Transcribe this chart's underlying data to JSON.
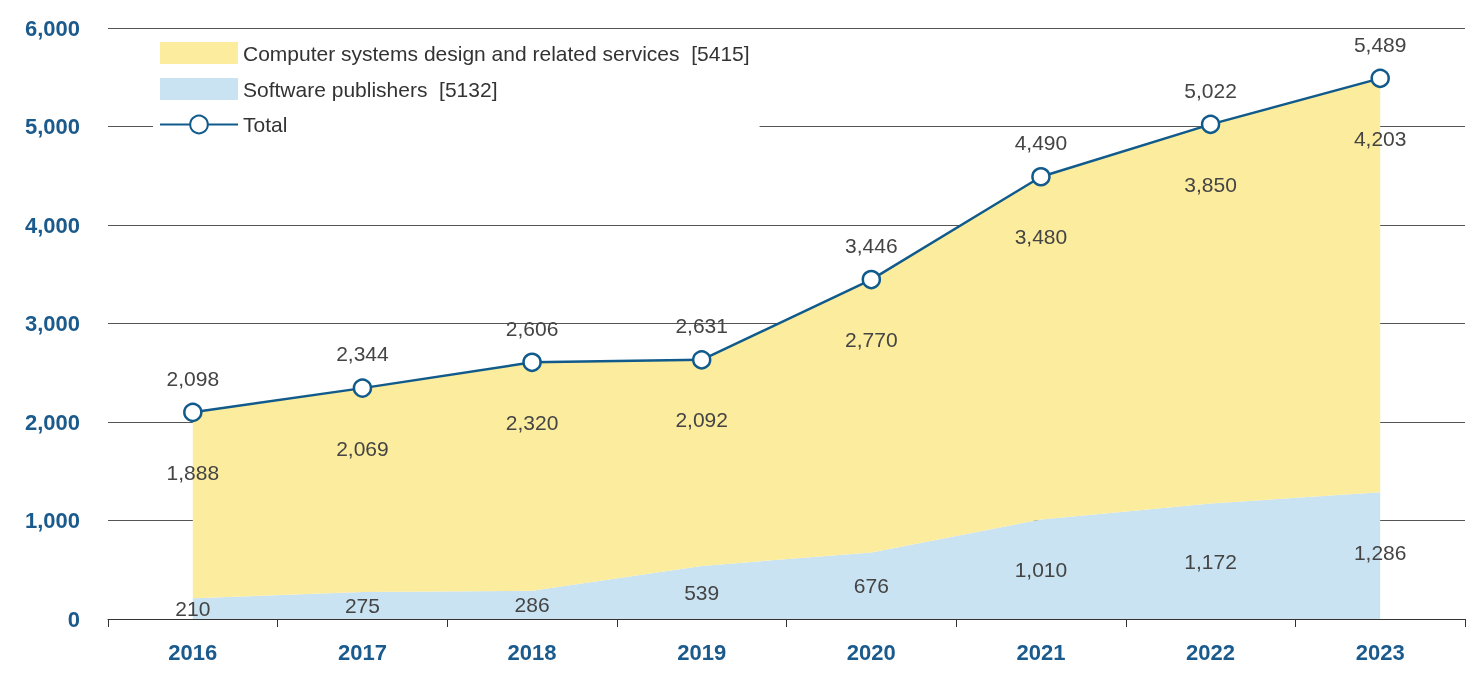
{
  "chart_data": {
    "type": "area",
    "stacked": true,
    "categories": [
      "2016",
      "2017",
      "2018",
      "2019",
      "2020",
      "2021",
      "2022",
      "2023"
    ],
    "series": [
      {
        "name": "Software publishers  [5132]",
        "color": "#c9e3f2",
        "values": [
          210,
          275,
          286,
          539,
          676,
          1010,
          1172,
          1286
        ],
        "value_labels": [
          "210",
          "275",
          "286",
          "539",
          "676",
          "1,010",
          "1,172",
          "1,286"
        ]
      },
      {
        "name": "Computer systems design and related services  [5415]",
        "color": "#fcec9e",
        "values": [
          1888,
          2069,
          2320,
          2092,
          2770,
          3480,
          3850,
          4203
        ],
        "value_labels": [
          "1,888",
          "2,069",
          "2,320",
          "2,092",
          "2,770",
          "3,480",
          "3,850",
          "4,203"
        ]
      },
      {
        "name": "Total",
        "type": "line",
        "color": "#105a8c",
        "marker": "circle",
        "values": [
          2098,
          2344,
          2606,
          2631,
          3446,
          4490,
          5022,
          5489
        ],
        "value_labels": [
          "2,098",
          "2,344",
          "2,606",
          "2,631",
          "3,446",
          "4,490",
          "5,022",
          "5,489"
        ]
      }
    ],
    "ylim": [
      0,
      6000
    ],
    "yticks": [
      {
        "value": 0,
        "label": "0"
      },
      {
        "value": 1000,
        "label": "1,000"
      },
      {
        "value": 2000,
        "label": "2,000"
      },
      {
        "value": 3000,
        "label": "3,000"
      },
      {
        "value": 4000,
        "label": "4,000"
      },
      {
        "value": 5000,
        "label": "5,000"
      },
      {
        "value": 6000,
        "label": "6,000"
      }
    ],
    "grid": "y",
    "legend": "top left"
  }
}
